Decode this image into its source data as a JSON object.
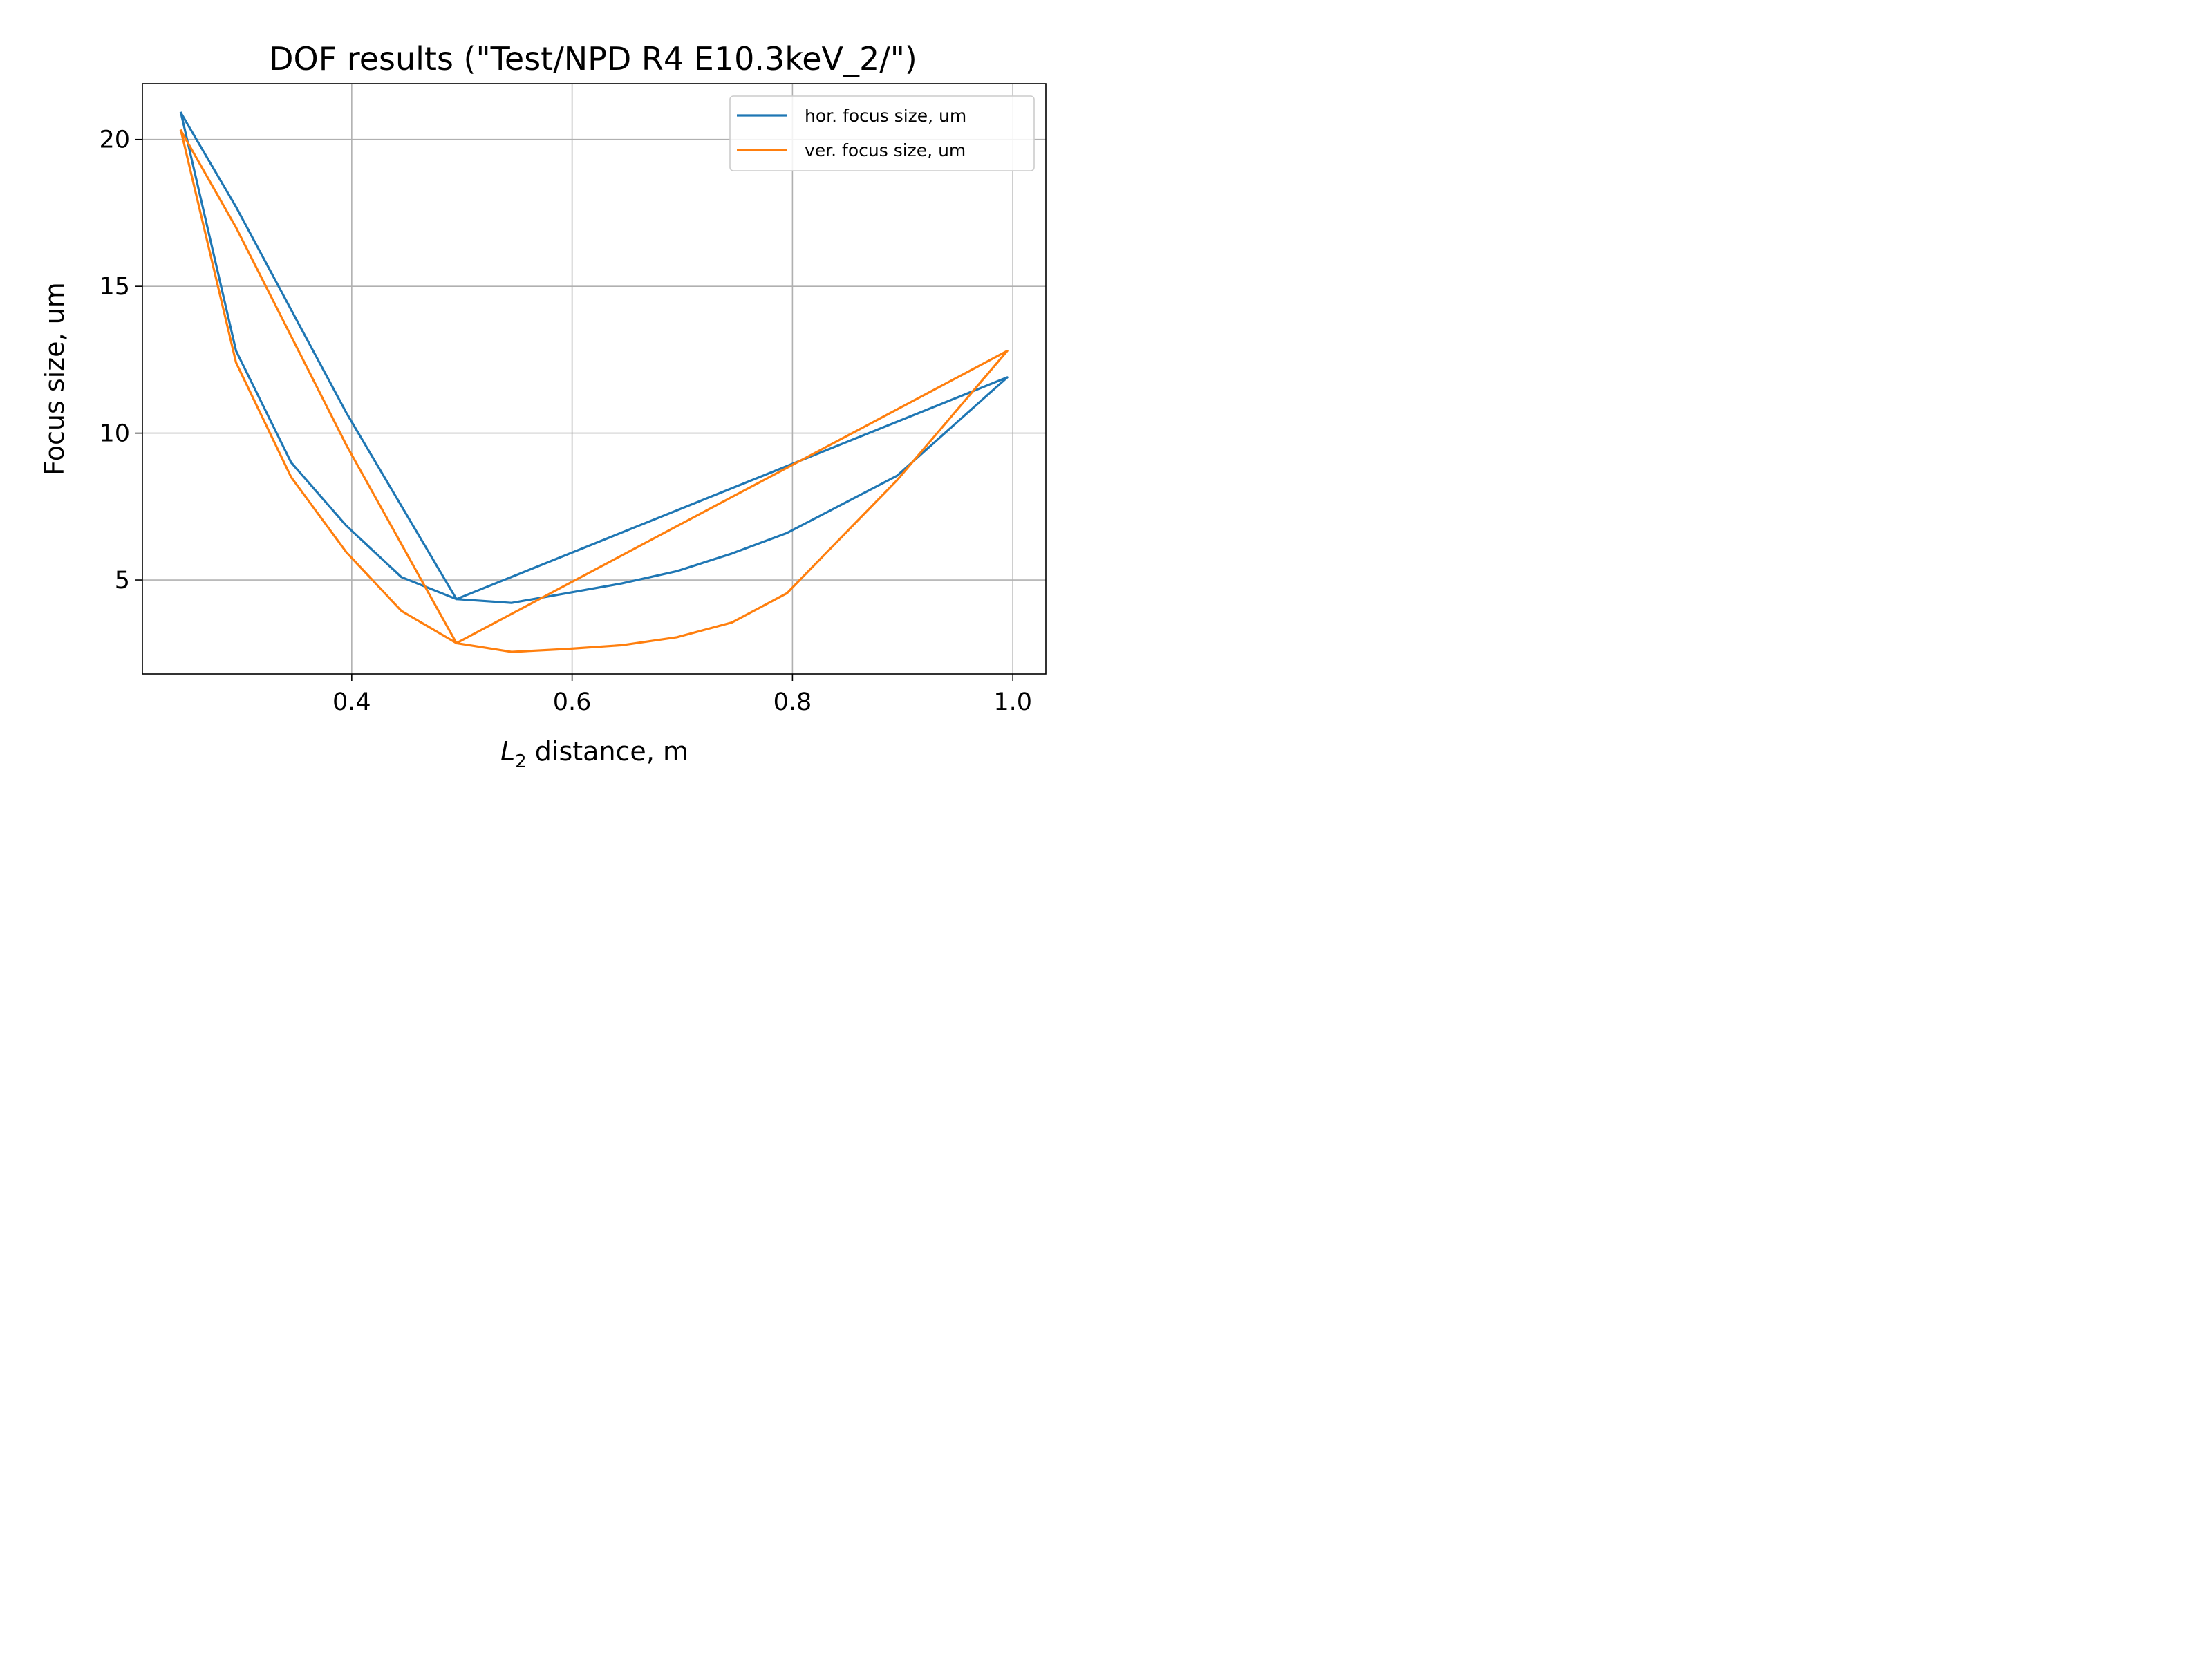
{
  "chart_data": {
    "type": "line",
    "title": "DOF results (\"Test/NPD R4 E10.3keV_2/\")",
    "xlabel_main": "L",
    "xlabel_sub": "2",
    "xlabel_rest": " distance, m",
    "ylabel": "Focus size, um",
    "xlim": [
      0.21,
      1.03
    ],
    "ylim": [
      1.8,
      21.9
    ],
    "xticks": [
      0.4,
      0.6,
      0.8,
      1.0
    ],
    "xtick_labels": [
      "0.4",
      "0.6",
      "0.8",
      "1.0"
    ],
    "yticks": [
      5,
      10,
      15,
      20
    ],
    "ytick_labels": [
      "5",
      "10",
      "15",
      "20"
    ],
    "grid": true,
    "legend_position": "upper right",
    "series": [
      {
        "name": "hor. focus size, um",
        "color": "#1f77b4",
        "x": [
          0.245,
          0.295,
          0.345,
          0.395,
          0.445,
          0.495,
          0.545,
          0.595,
          0.645,
          0.695,
          0.745,
          0.795,
          0.895,
          0.995,
          0.495,
          0.395,
          0.295,
          0.245
        ],
        "y": [
          20.9,
          12.8,
          9.0,
          6.85,
          5.1,
          4.35,
          4.22,
          4.55,
          4.88,
          5.3,
          5.9,
          6.6,
          8.55,
          11.9,
          4.35,
          10.7,
          17.7,
          20.9
        ]
      },
      {
        "name": "ver. focus size, um",
        "color": "#ff7f0e",
        "x": [
          0.245,
          0.295,
          0.345,
          0.395,
          0.445,
          0.495,
          0.545,
          0.595,
          0.645,
          0.695,
          0.745,
          0.795,
          0.895,
          0.995,
          0.495,
          0.395,
          0.295,
          0.245
        ],
        "y": [
          20.3,
          12.4,
          8.5,
          5.95,
          3.95,
          2.85,
          2.55,
          2.65,
          2.78,
          3.05,
          3.55,
          4.55,
          8.4,
          12.8,
          2.85,
          9.6,
          17.0,
          20.3
        ]
      }
    ]
  }
}
